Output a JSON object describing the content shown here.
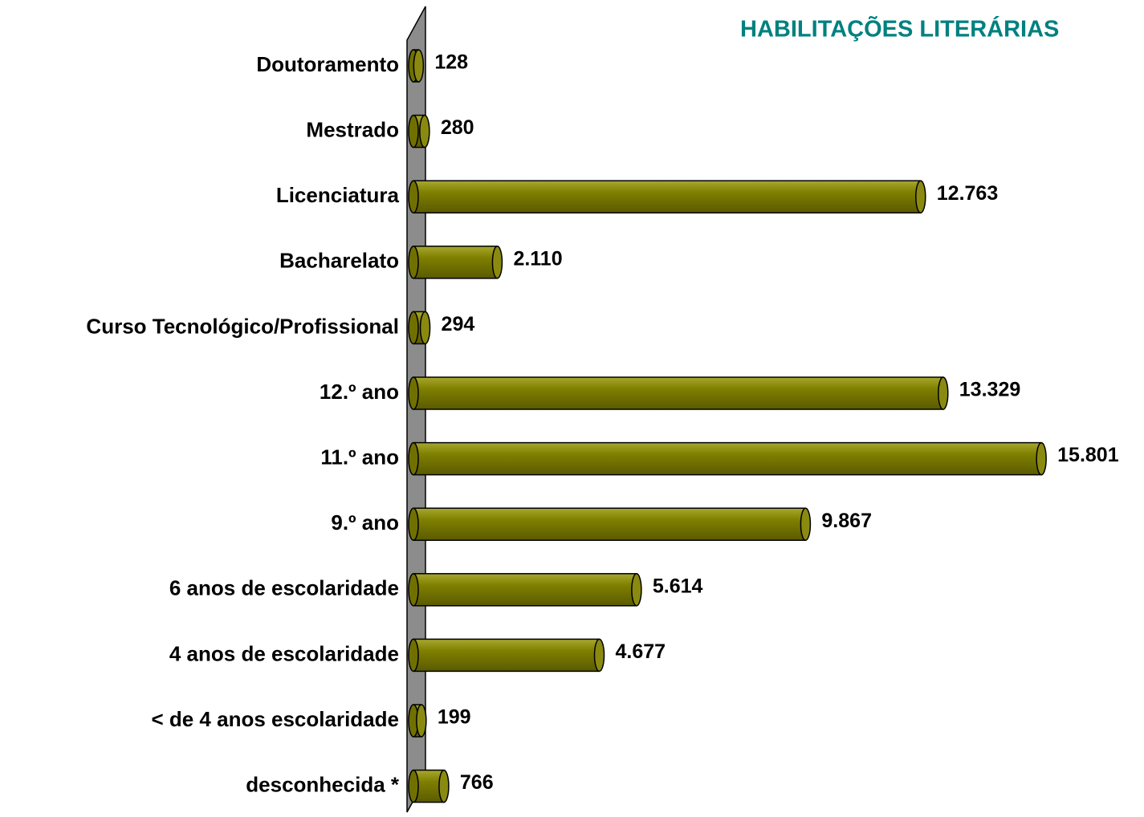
{
  "chart_data": {
    "type": "bar",
    "orientation": "horizontal",
    "title": "HABILITAÇÕES LITERÁRIAS",
    "categories": [
      "Doutoramento",
      "Mestrado",
      "Licenciatura",
      "Bacharelato",
      "Curso Tecnológico/Profissional",
      "12.º ano",
      "11.º ano",
      "9.º ano",
      "6 anos de escolaridade",
      "4 anos de escolaridade",
      "< de 4 anos escolaridade",
      "desconhecida *"
    ],
    "values": [
      128,
      280,
      12763,
      2110,
      294,
      13329,
      15801,
      9867,
      5614,
      4677,
      199,
      766
    ],
    "value_labels": [
      "128",
      "280",
      "12.763",
      "2.110",
      "294",
      "13.329",
      "15.801",
      "9.867",
      "5.614",
      "4.677",
      "199",
      "766"
    ],
    "color": "#808000",
    "xlim": [
      0,
      16000
    ]
  }
}
